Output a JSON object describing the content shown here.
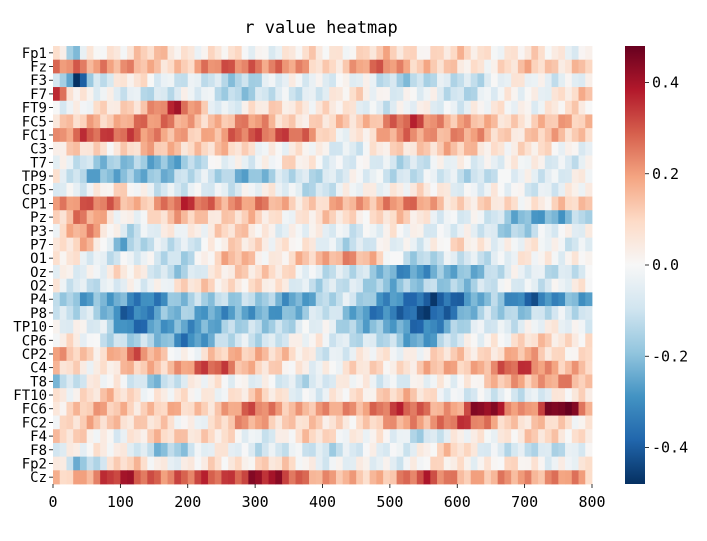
{
  "chart_data": {
    "type": "heatmap",
    "title": "r value heatmap",
    "y_categories": [
      "Fp1",
      "Fz",
      "F3",
      "F7",
      "FT9",
      "FC5",
      "FC1",
      "C3",
      "T7",
      "TP9",
      "CP5",
      "CP1",
      "Pz",
      "P3",
      "P7",
      "O1",
      "Oz",
      "O2",
      "P4",
      "P8",
      "TP10",
      "CP6",
      "CP2",
      "C4",
      "T8",
      "FT10",
      "FC6",
      "FC2",
      "F4",
      "F8",
      "Fp2",
      "Cz"
    ],
    "x_range": [
      0,
      800
    ],
    "x_ticks": [
      0,
      100,
      200,
      300,
      400,
      500,
      600,
      700,
      800
    ],
    "n_columns": 80,
    "colorbar": {
      "cmap": "RdBu_r",
      "vmin": -0.48,
      "vmax": 0.48,
      "ticks": [
        0.4,
        0.2,
        0.0,
        -0.2,
        -0.4
      ],
      "tick_labels": [
        "0.4",
        "0.2",
        "0.0",
        "-0.2",
        "-0.4"
      ]
    },
    "colors": {
      "low": "#053061",
      "mid": "#f7f7f7",
      "high": "#67001f"
    },
    "value_note": "Approximate per-channel r values over time (x); estimated from visible color pattern.",
    "row_profiles": {
      "Fp1": [
        [
          0,
          0.15
        ],
        [
          30,
          -0.25
        ],
        [
          60,
          0.05
        ],
        [
          150,
          0.1
        ],
        [
          300,
          0.0
        ],
        [
          500,
          0.1
        ],
        [
          700,
          0.05
        ],
        [
          800,
          0.0
        ]
      ],
      "Fz": [
        [
          0,
          0.2
        ],
        [
          80,
          0.25
        ],
        [
          150,
          0.1
        ],
        [
          300,
          0.3
        ],
        [
          400,
          0.1
        ],
        [
          500,
          0.25
        ],
        [
          600,
          0.05
        ],
        [
          800,
          0.15
        ]
      ],
      "F3": [
        [
          0,
          0.0
        ],
        [
          35,
          -0.45
        ],
        [
          60,
          -0.1
        ],
        [
          120,
          0.05
        ],
        [
          250,
          -0.15
        ],
        [
          400,
          0.0
        ],
        [
          550,
          -0.15
        ],
        [
          700,
          0.0
        ],
        [
          800,
          -0.05
        ]
      ],
      "F7": [
        [
          0,
          0.35
        ],
        [
          30,
          0.1
        ],
        [
          100,
          -0.1
        ],
        [
          200,
          -0.05
        ],
        [
          300,
          -0.15
        ],
        [
          450,
          0.05
        ],
        [
          600,
          -0.1
        ],
        [
          800,
          0.1
        ]
      ],
      "FT9": [
        [
          0,
          0.0
        ],
        [
          100,
          0.05
        ],
        [
          180,
          0.35
        ],
        [
          250,
          -0.05
        ],
        [
          350,
          0.1
        ],
        [
          500,
          -0.05
        ],
        [
          650,
          0.0
        ],
        [
          800,
          0.05
        ]
      ],
      "FC5": [
        [
          0,
          0.15
        ],
        [
          90,
          0.1
        ],
        [
          120,
          0.3
        ],
        [
          200,
          0.15
        ],
        [
          300,
          0.2
        ],
        [
          400,
          0.05
        ],
        [
          540,
          0.3
        ],
        [
          650,
          0.1
        ],
        [
          800,
          0.15
        ]
      ],
      "FC1": [
        [
          0,
          0.2
        ],
        [
          110,
          0.35
        ],
        [
          160,
          0.15
        ],
        [
          250,
          0.2
        ],
        [
          350,
          0.35
        ],
        [
          420,
          0.0
        ],
        [
          540,
          0.25
        ],
        [
          700,
          0.1
        ],
        [
          800,
          0.15
        ]
      ],
      "C3": [
        [
          0,
          0.05
        ],
        [
          100,
          0.1
        ],
        [
          200,
          0.15
        ],
        [
          300,
          0.05
        ],
        [
          450,
          -0.05
        ],
        [
          550,
          0.15
        ],
        [
          700,
          0.05
        ],
        [
          800,
          0.0
        ]
      ],
      "T7": [
        [
          0,
          -0.05
        ],
        [
          80,
          -0.15
        ],
        [
          150,
          -0.25
        ],
        [
          250,
          -0.05
        ],
        [
          350,
          0.05
        ],
        [
          500,
          -0.1
        ],
        [
          650,
          0.0
        ],
        [
          800,
          -0.05
        ]
      ],
      "TP9": [
        [
          0,
          0.0
        ],
        [
          60,
          -0.2
        ],
        [
          120,
          -0.25
        ],
        [
          200,
          -0.1
        ],
        [
          300,
          -0.2
        ],
        [
          420,
          -0.05
        ],
        [
          600,
          -0.1
        ],
        [
          800,
          0.0
        ]
      ],
      "CP5": [
        [
          0,
          -0.05
        ],
        [
          100,
          0.05
        ],
        [
          200,
          -0.1
        ],
        [
          300,
          0.0
        ],
        [
          400,
          -0.1
        ],
        [
          500,
          0.05
        ],
        [
          700,
          -0.05
        ],
        [
          800,
          0.0
        ]
      ],
      "CP1": [
        [
          0,
          0.2
        ],
        [
          40,
          0.3
        ],
        [
          120,
          0.15
        ],
        [
          200,
          0.3
        ],
        [
          300,
          0.2
        ],
        [
          400,
          0.1
        ],
        [
          500,
          0.25
        ],
        [
          650,
          0.05
        ],
        [
          800,
          0.1
        ]
      ],
      "Pz": [
        [
          0,
          0.1
        ],
        [
          40,
          0.25
        ],
        [
          100,
          0.0
        ],
        [
          200,
          0.15
        ],
        [
          350,
          0.05
        ],
        [
          500,
          0.1
        ],
        [
          650,
          -0.1
        ],
        [
          750,
          -0.3
        ],
        [
          800,
          -0.05
        ]
      ],
      "P3": [
        [
          0,
          0.05
        ],
        [
          50,
          0.2
        ],
        [
          120,
          -0.1
        ],
        [
          250,
          0.1
        ],
        [
          400,
          -0.05
        ],
        [
          550,
          0.0
        ],
        [
          700,
          -0.15
        ],
        [
          800,
          0.05
        ]
      ],
      "P7": [
        [
          0,
          0.0
        ],
        [
          60,
          0.15
        ],
        [
          100,
          -0.2
        ],
        [
          200,
          -0.05
        ],
        [
          300,
          0.1
        ],
        [
          450,
          -0.1
        ],
        [
          600,
          0.05
        ],
        [
          800,
          -0.05
        ]
      ],
      "O1": [
        [
          0,
          0.05
        ],
        [
          80,
          -0.05
        ],
        [
          200,
          -0.1
        ],
        [
          280,
          0.2
        ],
        [
          330,
          0.0
        ],
        [
          430,
          0.25
        ],
        [
          550,
          -0.15
        ],
        [
          700,
          0.0
        ],
        [
          800,
          0.05
        ]
      ],
      "Oz": [
        [
          0,
          -0.05
        ],
        [
          100,
          0.05
        ],
        [
          200,
          -0.15
        ],
        [
          280,
          0.15
        ],
        [
          400,
          -0.05
        ],
        [
          550,
          -0.3
        ],
        [
          700,
          -0.05
        ],
        [
          800,
          -0.1
        ]
      ],
      "O2": [
        [
          0,
          0.0
        ],
        [
          80,
          -0.1
        ],
        [
          180,
          0.05
        ],
        [
          280,
          0.1
        ],
        [
          400,
          -0.1
        ],
        [
          550,
          -0.2
        ],
        [
          700,
          -0.05
        ],
        [
          800,
          0.0
        ]
      ],
      "P4": [
        [
          0,
          -0.05
        ],
        [
          50,
          -0.25
        ],
        [
          150,
          -0.3
        ],
        [
          250,
          -0.1
        ],
        [
          350,
          -0.25
        ],
        [
          450,
          -0.1
        ],
        [
          550,
          -0.45
        ],
        [
          650,
          -0.2
        ],
        [
          700,
          -0.35
        ],
        [
          800,
          -0.25
        ]
      ],
      "P8": [
        [
          0,
          -0.05
        ],
        [
          60,
          -0.15
        ],
        [
          100,
          -0.35
        ],
        [
          200,
          -0.2
        ],
        [
          300,
          -0.3
        ],
        [
          400,
          -0.1
        ],
        [
          540,
          -0.45
        ],
        [
          650,
          -0.15
        ],
        [
          800,
          -0.1
        ]
      ],
      "TP10": [
        [
          0,
          0.0
        ],
        [
          80,
          -0.1
        ],
        [
          120,
          -0.35
        ],
        [
          200,
          -0.25
        ],
        [
          300,
          -0.15
        ],
        [
          400,
          -0.05
        ],
        [
          540,
          -0.35
        ],
        [
          650,
          -0.05
        ],
        [
          800,
          0.0
        ]
      ],
      "CP6": [
        [
          0,
          0.05
        ],
        [
          100,
          -0.1
        ],
        [
          200,
          -0.3
        ],
        [
          280,
          -0.1
        ],
        [
          400,
          0.0
        ],
        [
          550,
          -0.25
        ],
        [
          650,
          0.05
        ],
        [
          800,
          0.1
        ]
      ],
      "CP2": [
        [
          0,
          0.15
        ],
        [
          60,
          0.1
        ],
        [
          120,
          0.25
        ],
        [
          200,
          0.0
        ],
        [
          300,
          0.2
        ],
        [
          400,
          -0.05
        ],
        [
          550,
          0.05
        ],
        [
          700,
          0.15
        ],
        [
          800,
          0.05
        ]
      ],
      "C4": [
        [
          0,
          0.1
        ],
        [
          80,
          0.05
        ],
        [
          150,
          0.15
        ],
        [
          250,
          0.3
        ],
        [
          350,
          0.0
        ],
        [
          450,
          0.05
        ],
        [
          600,
          0.15
        ],
        [
          700,
          0.3
        ],
        [
          800,
          0.1
        ]
      ],
      "T8": [
        [
          0,
          -0.2
        ],
        [
          60,
          0.05
        ],
        [
          150,
          -0.15
        ],
        [
          250,
          0.05
        ],
        [
          350,
          -0.1
        ],
        [
          450,
          0.0
        ],
        [
          550,
          -0.05
        ],
        [
          750,
          0.25
        ],
        [
          800,
          0.05
        ]
      ],
      "FT10": [
        [
          0,
          0.05
        ],
        [
          100,
          0.1
        ],
        [
          200,
          0.0
        ],
        [
          300,
          0.1
        ],
        [
          400,
          -0.05
        ],
        [
          500,
          0.15
        ],
        [
          650,
          -0.1
        ],
        [
          800,
          0.05
        ]
      ],
      "FC6": [
        [
          0,
          0.1
        ],
        [
          100,
          0.15
        ],
        [
          200,
          0.1
        ],
        [
          300,
          0.25
        ],
        [
          400,
          0.15
        ],
        [
          500,
          0.3
        ],
        [
          600,
          0.2
        ],
        [
          640,
          0.45
        ],
        [
          700,
          0.2
        ],
        [
          760,
          0.5
        ],
        [
          800,
          0.2
        ]
      ],
      "FC2": [
        [
          0,
          0.05
        ],
        [
          100,
          0.15
        ],
        [
          200,
          0.0
        ],
        [
          300,
          0.2
        ],
        [
          400,
          0.05
        ],
        [
          500,
          0.15
        ],
        [
          600,
          0.3
        ],
        [
          700,
          0.1
        ],
        [
          800,
          0.05
        ]
      ],
      "F4": [
        [
          0,
          0.1
        ],
        [
          100,
          0.0
        ],
        [
          200,
          0.15
        ],
        [
          300,
          -0.05
        ],
        [
          400,
          0.1
        ],
        [
          550,
          -0.1
        ],
        [
          650,
          0.05
        ],
        [
          800,
          0.1
        ]
      ],
      "F8": [
        [
          0,
          -0.1
        ],
        [
          80,
          0.1
        ],
        [
          150,
          -0.2
        ],
        [
          250,
          0.0
        ],
        [
          350,
          -0.1
        ],
        [
          500,
          -0.05
        ],
        [
          600,
          0.1
        ],
        [
          700,
          -0.15
        ],
        [
          800,
          0.0
        ]
      ],
      "Fp2": [
        [
          0,
          0.05
        ],
        [
          40,
          -0.2
        ],
        [
          100,
          0.1
        ],
        [
          200,
          0.0
        ],
        [
          300,
          0.1
        ],
        [
          450,
          -0.05
        ],
        [
          600,
          0.05
        ],
        [
          800,
          0.0
        ]
      ],
      "Cz": [
        [
          0,
          0.1
        ],
        [
          100,
          0.35
        ],
        [
          200,
          0.25
        ],
        [
          300,
          0.4
        ],
        [
          360,
          0.3
        ],
        [
          450,
          0.1
        ],
        [
          550,
          0.3
        ],
        [
          650,
          0.15
        ],
        [
          750,
          0.25
        ],
        [
          800,
          0.1
        ]
      ]
    }
  }
}
